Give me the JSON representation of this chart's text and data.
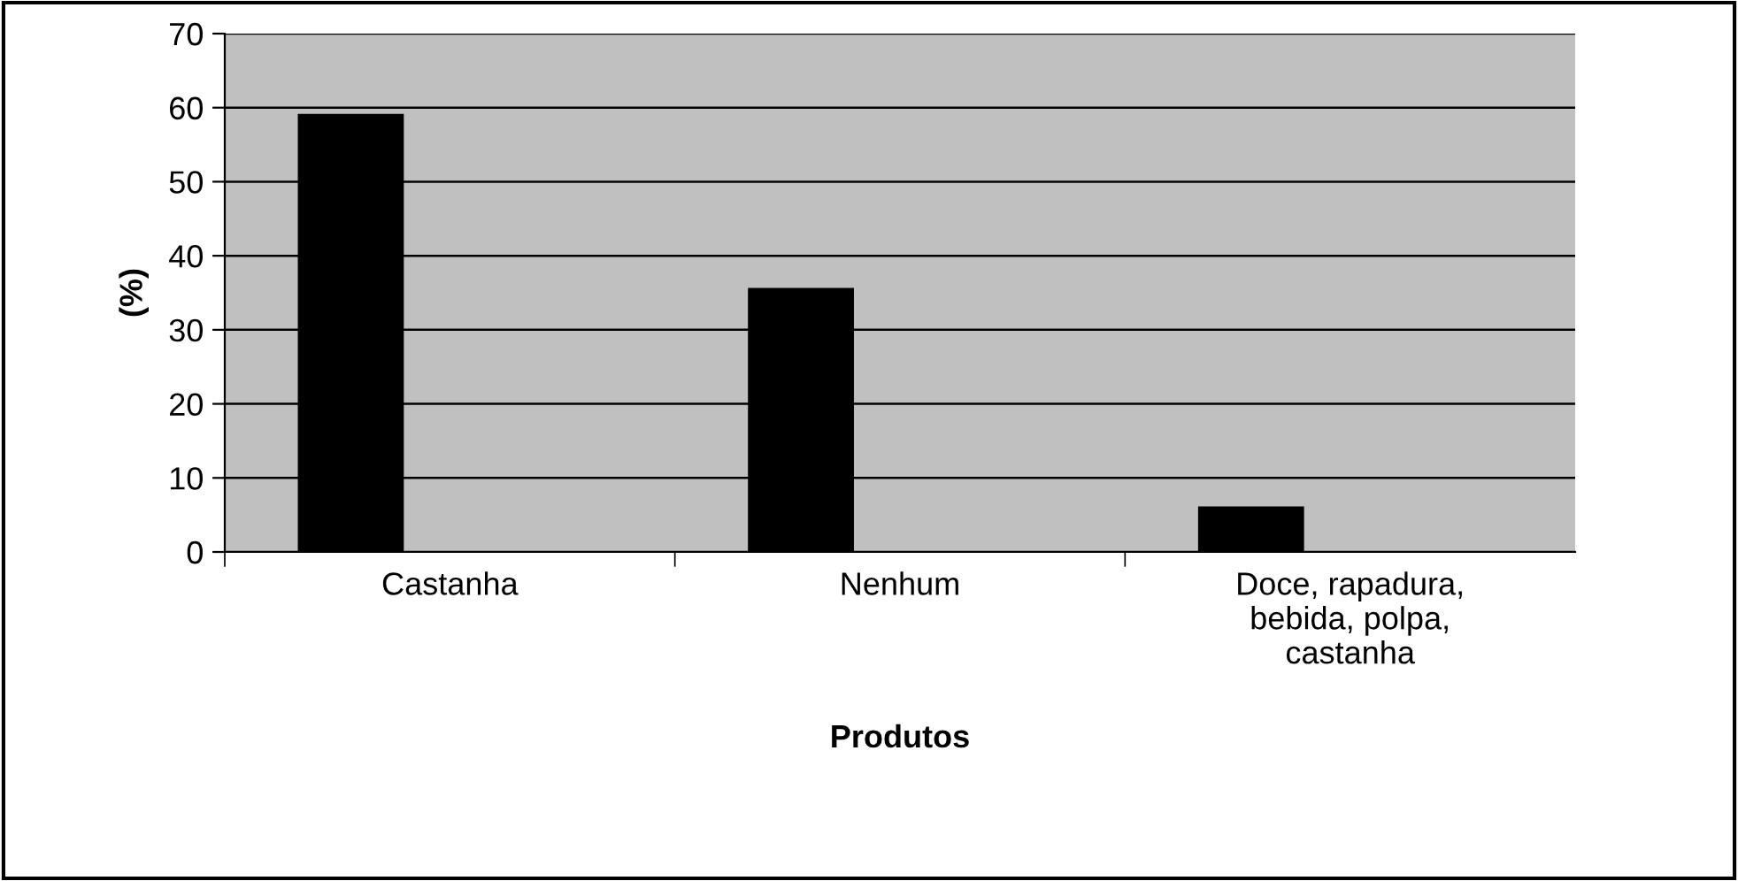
{
  "chart_data": {
    "type": "bar",
    "categories": [
      "Castanha",
      "Nenhum",
      "Doce, rapadura,\nbebida, polpa,\ncastanha"
    ],
    "values": [
      59,
      35.5,
      6
    ],
    "color": "#000000",
    "xlabel": "Produtos",
    "ylabel": "(%)",
    "ylim": [
      0,
      70
    ],
    "yticks": [
      0,
      10,
      20,
      30,
      40,
      50,
      60,
      70
    ],
    "grid": "y",
    "legend": false
  }
}
